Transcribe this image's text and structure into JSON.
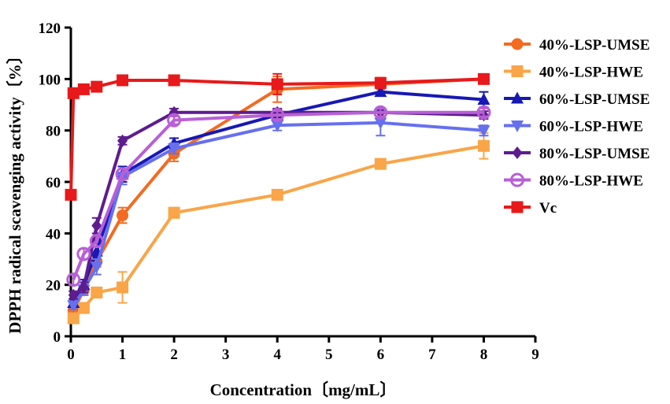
{
  "chart_data": {
    "type": "line",
    "xlabel": "Concentration〔mg/mL〕",
    "ylabel": "DPPH radical scavenging activity〔%〕",
    "xlim": [
      0,
      9
    ],
    "ylim": [
      0,
      120
    ],
    "xticks": [
      0,
      1,
      2,
      3,
      4,
      5,
      6,
      7,
      8,
      9
    ],
    "yticks": [
      0,
      20,
      40,
      60,
      80,
      100,
      120
    ],
    "legend_position": "right",
    "series": [
      {
        "name": "40%-LSP-UMSE",
        "color": "#F26B21",
        "marker": "circle-filled",
        "x": [
          0.05,
          0.25,
          0.5,
          1,
          2,
          4,
          6,
          8
        ],
        "y": [
          10,
          18,
          29,
          47,
          71,
          96,
          98,
          100
        ],
        "err": [
          1.5,
          2,
          2,
          3,
          3,
          5,
          2,
          1.5
        ]
      },
      {
        "name": "40%-LSP-HWE",
        "color": "#F9A548",
        "marker": "square-filled",
        "x": [
          0.05,
          0.25,
          0.5,
          1,
          2,
          4,
          6,
          8
        ],
        "y": [
          7,
          11,
          17,
          19,
          48,
          55,
          67,
          74
        ],
        "err": [
          1,
          2,
          2,
          6,
          2,
          1.5,
          1,
          5
        ]
      },
      {
        "name": "60%-LSP-UMSE",
        "color": "#1818B4",
        "marker": "triangle-up",
        "x": [
          0.05,
          0.25,
          0.5,
          1,
          2,
          4,
          6,
          8
        ],
        "y": [
          13,
          20,
          33,
          63,
          75,
          86,
          95,
          92
        ],
        "err": [
          1.5,
          2,
          3,
          3,
          2,
          2,
          1.5,
          3
        ]
      },
      {
        "name": "60%-LSP-HWE",
        "color": "#6670EE",
        "marker": "triangle-down",
        "x": [
          0.05,
          0.25,
          0.5,
          1,
          2,
          4,
          6,
          8
        ],
        "y": [
          12,
          18,
          27,
          62,
          73,
          82,
          83,
          80
        ],
        "err": [
          1.5,
          2,
          3,
          3,
          2,
          2,
          5,
          2
        ]
      },
      {
        "name": "80%-LSP-UMSE",
        "color": "#5E1C8F",
        "marker": "diamond-filled",
        "x": [
          0.05,
          0.25,
          0.5,
          1,
          2,
          4,
          6,
          8
        ],
        "y": [
          16,
          19,
          43,
          76,
          87,
          87,
          87,
          86
        ],
        "err": [
          1.5,
          2,
          3,
          1.5,
          1.5,
          1.5,
          1.5,
          1.5
        ]
      },
      {
        "name": "80%-LSP-HWE",
        "color": "#B85FD6",
        "marker": "circle-open",
        "x": [
          0.05,
          0.25,
          0.5,
          1,
          2,
          4,
          6,
          8
        ],
        "y": [
          22,
          32,
          37,
          63,
          84,
          86,
          87,
          87
        ],
        "err": [
          2,
          2,
          2,
          2,
          1.5,
          1.5,
          1.5,
          1.5
        ]
      },
      {
        "name": "Vc",
        "color": "#E8191A",
        "marker": "square-filled",
        "x": [
          0,
          0.05,
          0.25,
          0.5,
          1,
          2,
          4,
          6,
          8
        ],
        "y": [
          55,
          94.5,
          96,
          97,
          99.5,
          99.5,
          98,
          98.5,
          100
        ],
        "err": [
          1,
          1,
          1,
          1,
          1,
          1,
          4,
          2,
          1
        ]
      }
    ]
  }
}
